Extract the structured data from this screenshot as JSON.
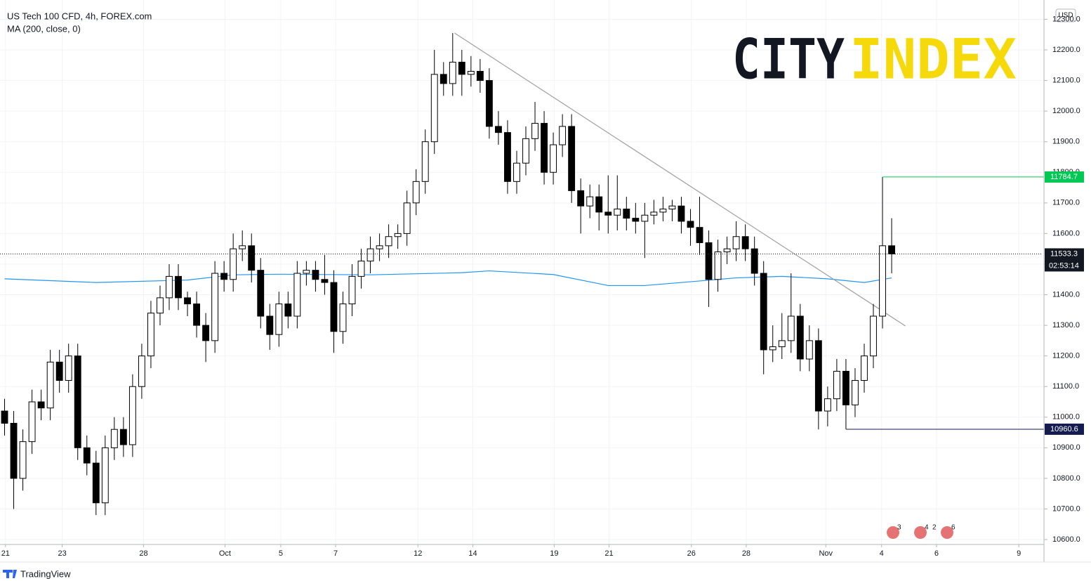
{
  "chart_data": {
    "type": "candlestick",
    "title": "US Tech 100 CFD, 4h, FOREX.com",
    "indicator": "MA (200, close, 0)",
    "currency": "USD",
    "logo": [
      "CITY",
      "INDEX"
    ],
    "footer": "TradingView",
    "events": [
      "3",
      "4",
      "2",
      "6"
    ],
    "ylim": [
      10584,
      12363
    ],
    "yticks": [
      {
        "value": 10600,
        "label": "10600.0"
      },
      {
        "value": 10700,
        "label": "10700.0"
      },
      {
        "value": 10800,
        "label": "10800.0"
      },
      {
        "value": 10900,
        "label": "10900.0"
      },
      {
        "value": 11000,
        "label": "11000.0"
      },
      {
        "value": 11100,
        "label": "11100.0"
      },
      {
        "value": 11200,
        "label": "11200.0"
      },
      {
        "value": 11300,
        "label": "11300.0"
      },
      {
        "value": 11400,
        "label": "11400.0"
      },
      {
        "value": 11500,
        "label": "11500.0"
      },
      {
        "value": 11600,
        "label": "11600.0"
      },
      {
        "value": 11700,
        "label": "11700.0"
      },
      {
        "value": 11800,
        "label": "11800.0"
      },
      {
        "value": 11900,
        "label": "11900.0"
      },
      {
        "value": 12000,
        "label": "12000.0"
      },
      {
        "value": 12100,
        "label": "12100.0"
      },
      {
        "value": 12200,
        "label": "12200.0"
      },
      {
        "value": 12300,
        "label": "12300.0"
      }
    ],
    "xlim": [
      -0.5,
      113.5
    ],
    "xticks": [
      {
        "value": 0.1,
        "label": "21"
      },
      {
        "value": 6.3,
        "label": "23"
      },
      {
        "value": 15.2,
        "label": "28"
      },
      {
        "value": 24.1,
        "label": "Oct"
      },
      {
        "value": 30.2,
        "label": "5"
      },
      {
        "value": 36.2,
        "label": "7"
      },
      {
        "value": 45.2,
        "label": "12"
      },
      {
        "value": 51.2,
        "label": "14"
      },
      {
        "value": 60.1,
        "label": "19"
      },
      {
        "value": 66.1,
        "label": "21"
      },
      {
        "value": 75.1,
        "label": "26"
      },
      {
        "value": 81.1,
        "label": "28"
      },
      {
        "value": 89.8,
        "label": "Nov"
      },
      {
        "value": 95.9,
        "label": "4"
      },
      {
        "value": 101.9,
        "label": "6"
      },
      {
        "value": 110.9,
        "label": "9"
      }
    ],
    "grid": true,
    "up_color": "#ffffff",
    "down_color": "#000000",
    "candles": [
      [
        11020,
        11060,
        10940,
        10980
      ],
      [
        10980,
        11020,
        10700,
        10800
      ],
      [
        10800,
        10960,
        10760,
        10920
      ],
      [
        10920,
        11090,
        10880,
        11050
      ],
      [
        11050,
        11090,
        10990,
        11030
      ],
      [
        11030,
        11220,
        10990,
        11180
      ],
      [
        11180,
        11220,
        11080,
        11120
      ],
      [
        11120,
        11240,
        11080,
        11200
      ],
      [
        11200,
        11240,
        10860,
        10900
      ],
      [
        10900,
        10940,
        10810,
        10850
      ],
      [
        10850,
        10890,
        10680,
        10720
      ],
      [
        10720,
        10940,
        10680,
        10900
      ],
      [
        10900,
        11000,
        10860,
        10960
      ],
      [
        10960,
        11000,
        10870,
        10910
      ],
      [
        10910,
        11140,
        10870,
        11100
      ],
      [
        11100,
        11240,
        11060,
        11200
      ],
      [
        11200,
        11380,
        11160,
        11340
      ],
      [
        11340,
        11430,
        11300,
        11390
      ],
      [
        11390,
        11500,
        11350,
        11460
      ],
      [
        11460,
        11500,
        11350,
        11390
      ],
      [
        11390,
        11410,
        11330,
        11370
      ],
      [
        11370,
        11410,
        11260,
        11300
      ],
      [
        11300,
        11340,
        11180,
        11250
      ],
      [
        11250,
        11510,
        11210,
        11470
      ],
      [
        11470,
        11510,
        11410,
        11450
      ],
      [
        11450,
        11600,
        11410,
        11550
      ],
      [
        11550,
        11610,
        11510,
        11560
      ],
      [
        11560,
        11600,
        11440,
        11480
      ],
      [
        11480,
        11520,
        11290,
        11330
      ],
      [
        11330,
        11370,
        11220,
        11270
      ],
      [
        11270,
        11410,
        11230,
        11370
      ],
      [
        11370,
        11410,
        11290,
        11330
      ],
      [
        11330,
        11510,
        11290,
        11470
      ],
      [
        11470,
        11510,
        11430,
        11480
      ],
      [
        11480,
        11510,
        11410,
        11450
      ],
      [
        11450,
        11530,
        11400,
        11440
      ],
      [
        11440,
        11480,
        11210,
        11280
      ],
      [
        11280,
        11410,
        11240,
        11370
      ],
      [
        11370,
        11500,
        11330,
        11460
      ],
      [
        11460,
        11550,
        11420,
        11510
      ],
      [
        11510,
        11590,
        11470,
        11550
      ],
      [
        11550,
        11600,
        11510,
        11560
      ],
      [
        11560,
        11630,
        11520,
        11590
      ],
      [
        11590,
        11630,
        11550,
        11600
      ],
      [
        11600,
        11740,
        11560,
        11700
      ],
      [
        11700,
        11810,
        11660,
        11770
      ],
      [
        11770,
        11940,
        11730,
        11900
      ],
      [
        11900,
        12200,
        11860,
        12120
      ],
      [
        12120,
        12160,
        12050,
        12090
      ],
      [
        12090,
        12255,
        12050,
        12160
      ],
      [
        12160,
        12200,
        12050,
        12120
      ],
      [
        12120,
        12180,
        12080,
        12130
      ],
      [
        12130,
        12170,
        12060,
        12100
      ],
      [
        12100,
        12140,
        11910,
        11950
      ],
      [
        11950,
        12000,
        11890,
        11930
      ],
      [
        11930,
        11970,
        11730,
        11770
      ],
      [
        11770,
        11870,
        11730,
        11830
      ],
      [
        11830,
        11950,
        11790,
        11910
      ],
      [
        11910,
        12030,
        11870,
        11960
      ],
      [
        11960,
        12000,
        11760,
        11800
      ],
      [
        11800,
        11930,
        11760,
        11890
      ],
      [
        11890,
        11990,
        11850,
        11950
      ],
      [
        11950,
        11990,
        11700,
        11740
      ],
      [
        11740,
        11780,
        11600,
        11690
      ],
      [
        11690,
        11760,
        11650,
        11720
      ],
      [
        11720,
        11760,
        11610,
        11670
      ],
      [
        11670,
        11790,
        11600,
        11660
      ],
      [
        11660,
        11790,
        11610,
        11680
      ],
      [
        11680,
        11720,
        11610,
        11650
      ],
      [
        11650,
        11700,
        11600,
        11640
      ],
      [
        11640,
        11700,
        11520,
        11660
      ],
      [
        11660,
        11710,
        11630,
        11670
      ],
      [
        11670,
        11720,
        11640,
        11680
      ],
      [
        11680,
        11710,
        11640,
        11690
      ],
      [
        11690,
        11720,
        11600,
        11640
      ],
      [
        11640,
        11680,
        11560,
        11620
      ],
      [
        11620,
        11720,
        11530,
        11570
      ],
      [
        11570,
        11610,
        11360,
        11450
      ],
      [
        11450,
        11580,
        11410,
        11540
      ],
      [
        11540,
        11590,
        11500,
        11550
      ],
      [
        11550,
        11640,
        11510,
        11590
      ],
      [
        11590,
        11630,
        11510,
        11550
      ],
      [
        11550,
        11590,
        11430,
        11470
      ],
      [
        11470,
        11510,
        11140,
        11220
      ],
      [
        11220,
        11300,
        11180,
        11230
      ],
      [
        11230,
        11340,
        11190,
        11250
      ],
      [
        11250,
        11470,
        11210,
        11330
      ],
      [
        11330,
        11370,
        11150,
        11190
      ],
      [
        11190,
        11300,
        11150,
        11250
      ],
      [
        11250,
        11290,
        10960,
        11020
      ],
      [
        11020,
        11100,
        10970,
        11060
      ],
      [
        11060,
        11190,
        11020,
        11150
      ],
      [
        11150,
        11190,
        10960.6,
        11040
      ],
      [
        11040,
        11160,
        11000,
        11120
      ],
      [
        11120,
        11240,
        11080,
        11200
      ],
      [
        11200,
        11370,
        11160,
        11330
      ],
      [
        11330,
        11784.7,
        11290,
        11560
      ],
      [
        11560,
        11650,
        11470,
        11533.3
      ]
    ],
    "ma": {
      "color": "#2196f3",
      "x": [
        0,
        10,
        20,
        25,
        30,
        40,
        50,
        53,
        60,
        66,
        70,
        76,
        80,
        85,
        90,
        94,
        97
      ],
      "values": [
        11452,
        11440,
        11448,
        11465,
        11467,
        11465,
        11472,
        11478,
        11466,
        11430,
        11430,
        11445,
        11455,
        11460,
        11452,
        11440,
        11455
      ]
    },
    "trendline": {
      "color": "#9e9e9e",
      "x": [
        49.2,
        98.5
      ],
      "values": [
        12255,
        11298
      ]
    },
    "levels": [
      {
        "value": 11784.7,
        "color": "#00c853"
      },
      {
        "value": 10960.6,
        "color": "#131b4f"
      }
    ],
    "last": {
      "value": 11533.3,
      "countdown": "02:53:14",
      "color": "#131722"
    }
  }
}
